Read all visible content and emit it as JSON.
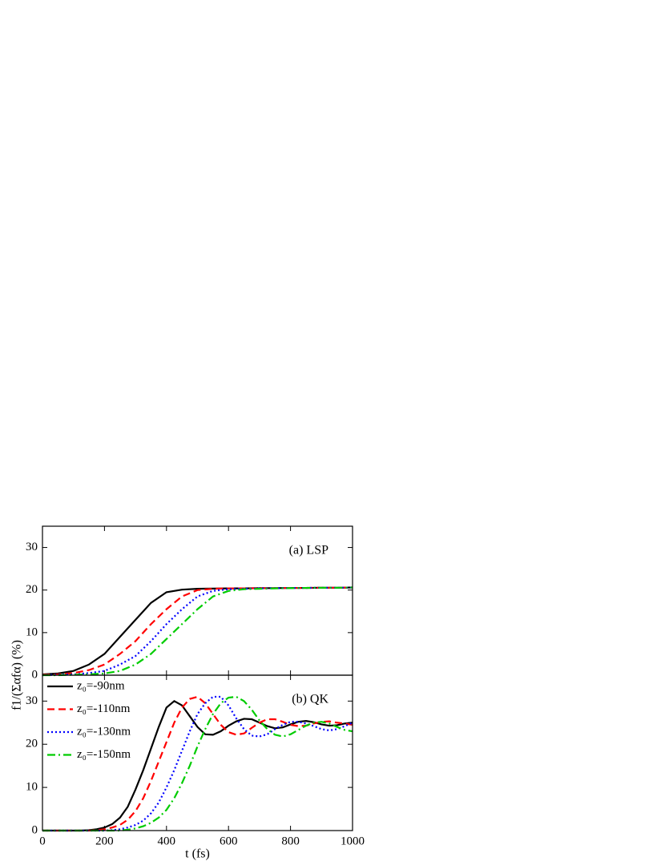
{
  "chart_data": [
    {
      "type": "line",
      "annotation": "(a) LSP",
      "y_label": "f1/(Σαfα) (%)",
      "x": [
        0,
        50,
        100,
        150,
        200,
        250,
        300,
        350,
        400,
        450,
        500,
        550,
        600,
        650,
        700,
        750,
        800,
        850,
        900,
        950,
        1000
      ],
      "xlim": [
        0,
        1000
      ],
      "xticks": [
        0,
        200,
        400,
        600,
        800,
        1000
      ],
      "ylim": [
        0,
        35
      ],
      "yticks": [
        0,
        10,
        20,
        30
      ],
      "series": [
        {
          "name": "z₀=-90nm",
          "color": "#000000",
          "style": "solid",
          "values": [
            0.2,
            0.4,
            1,
            2.5,
            5,
            9,
            13,
            17,
            19.5,
            20.1,
            20.3,
            20.35,
            20.4,
            20.4,
            20.45,
            20.45,
            20.5,
            20.5,
            20.55,
            20.55,
            20.6
          ]
        },
        {
          "name": "z₀=-110nm",
          "color": "#ff0000",
          "style": "dash",
          "values": [
            0.1,
            0.2,
            0.5,
            1.2,
            2.5,
            5,
            8,
            12,
            15.5,
            18.5,
            20,
            20.3,
            20.4,
            20.4,
            20.45,
            20.45,
            20.5,
            20.5,
            20.55,
            20.55,
            20.6
          ]
        },
        {
          "name": "z₀=-130nm",
          "color": "#0000ff",
          "style": "dot",
          "values": [
            0,
            0.1,
            0.2,
            0.5,
            1,
            2.5,
            4.5,
            8,
            12,
            15.5,
            18.5,
            19.8,
            20.2,
            20.3,
            20.4,
            20.45,
            20.5,
            20.5,
            20.55,
            20.55,
            20.6
          ]
        },
        {
          "name": "z₀=-150nm",
          "color": "#00cc00",
          "style": "dashdot",
          "values": [
            0,
            0,
            0.1,
            0.2,
            0.4,
            1,
            2.5,
            5,
            8.5,
            12,
            15.5,
            18.5,
            19.8,
            20.2,
            20.3,
            20.4,
            20.45,
            20.5,
            20.55,
            20.55,
            20.6
          ]
        }
      ]
    },
    {
      "type": "line",
      "annotation": "(b) QK",
      "x_label": "t (fs)",
      "legend": "upper-left",
      "x": [
        0,
        25,
        50,
        75,
        100,
        125,
        150,
        175,
        200,
        225,
        250,
        275,
        300,
        325,
        350,
        375,
        400,
        425,
        450,
        475,
        500,
        525,
        550,
        575,
        600,
        625,
        650,
        675,
        700,
        725,
        750,
        775,
        800,
        825,
        850,
        875,
        900,
        925,
        950,
        975,
        1000
      ],
      "xlim": [
        0,
        1000
      ],
      "xticks": [
        0,
        200,
        400,
        600,
        800,
        1000
      ],
      "ylim": [
        0,
        36
      ],
      "yticks": [
        0,
        10,
        20,
        30
      ],
      "series": [
        {
          "name": "z₀=-90nm",
          "color": "#000000",
          "style": "solid",
          "values": [
            0,
            0,
            0,
            0,
            0,
            0,
            0.1,
            0.3,
            0.7,
            1.5,
            3,
            5.5,
            9.5,
            14,
            19,
            24,
            28.5,
            30,
            29,
            26.5,
            24,
            22.3,
            22.2,
            23,
            24.3,
            25.3,
            25.9,
            25.8,
            25,
            24.2,
            23.7,
            23.9,
            24.6,
            25.2,
            25.4,
            25.1,
            24.6,
            24.3,
            24.4,
            24.8,
            25
          ]
        },
        {
          "name": "z₀=-110nm",
          "color": "#ff0000",
          "style": "dash",
          "values": [
            0,
            0,
            0,
            0,
            0,
            0,
            0,
            0.1,
            0.3,
            0.7,
            1.3,
            2.5,
            4.5,
            7.5,
            11.5,
            16,
            20.5,
            25,
            28.5,
            30.5,
            31,
            29.5,
            27,
            24.5,
            22.8,
            22.2,
            22.5,
            23.8,
            25,
            25.8,
            25.8,
            25.2,
            24.5,
            24.2,
            24.3,
            24.8,
            25.2,
            25.3,
            25,
            24.8,
            24.5
          ]
        },
        {
          "name": "z₀=-130nm",
          "color": "#0000ff",
          "style": "dot",
          "values": [
            0,
            0,
            0,
            0,
            0,
            0,
            0,
            0,
            0,
            0.1,
            0.3,
            0.7,
            1.3,
            2.3,
            4,
            6.5,
            10,
            14,
            18.5,
            23,
            27,
            29.5,
            31,
            31,
            29,
            26,
            23.5,
            22,
            21.8,
            22.3,
            23.5,
            24.5,
            25.2,
            25.2,
            24.8,
            24.2,
            23.5,
            23.2,
            23.5,
            24.2,
            25
          ]
        },
        {
          "name": "z₀=-150nm",
          "color": "#00cc00",
          "style": "dashdot",
          "values": [
            0,
            0,
            0,
            0,
            0,
            0,
            0,
            0,
            0,
            0,
            0,
            0.2,
            0.5,
            1,
            1.8,
            3,
            4.8,
            7.5,
            11,
            15,
            19.5,
            23.5,
            27,
            29.5,
            30.8,
            31,
            30,
            28,
            25.5,
            23.5,
            22.2,
            21.8,
            22.3,
            23.3,
            24.3,
            25,
            25.2,
            24.8,
            24,
            23.3,
            23
          ]
        }
      ]
    }
  ]
}
